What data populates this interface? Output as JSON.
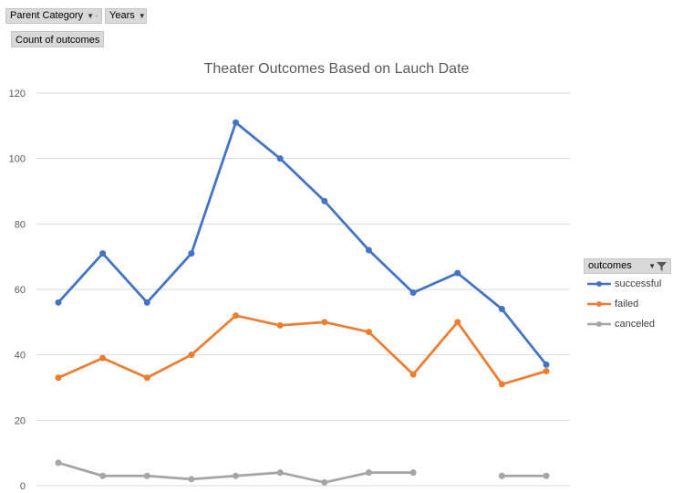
{
  "pivot": {
    "row_field": "Parent Category",
    "col_field": "Years",
    "value_field": "Count of outcomes"
  },
  "legend": {
    "title": "outcomes",
    "items": [
      "successful",
      "failed",
      "canceled"
    ]
  },
  "colors": {
    "successful": "#4472c4",
    "failed": "#ed7d31",
    "canceled": "#a5a5a5",
    "grid": "#d9d9d9",
    "axis_text": "#595959",
    "title_text": "#595959"
  },
  "chart_data": {
    "type": "line",
    "title": "Theater Outcomes Based on Lauch Date",
    "xlabel": "",
    "ylabel": "",
    "ylim": [
      0,
      120
    ],
    "yticks": [
      0,
      20,
      40,
      60,
      80,
      100,
      120
    ],
    "grid": true,
    "legend_position": "right",
    "x": [
      1,
      2,
      3,
      4,
      5,
      6,
      7,
      8,
      9,
      10,
      11,
      12
    ],
    "series": [
      {
        "name": "successful",
        "values": [
          56,
          71,
          56,
          71,
          111,
          100,
          87,
          72,
          59,
          65,
          54,
          37
        ]
      },
      {
        "name": "failed",
        "values": [
          33,
          39,
          33,
          40,
          52,
          49,
          50,
          47,
          34,
          50,
          31,
          35
        ]
      },
      {
        "name": "canceled",
        "values": [
          7,
          3,
          3,
          2,
          3,
          4,
          1,
          4,
          4,
          null,
          3,
          3
        ]
      }
    ]
  }
}
